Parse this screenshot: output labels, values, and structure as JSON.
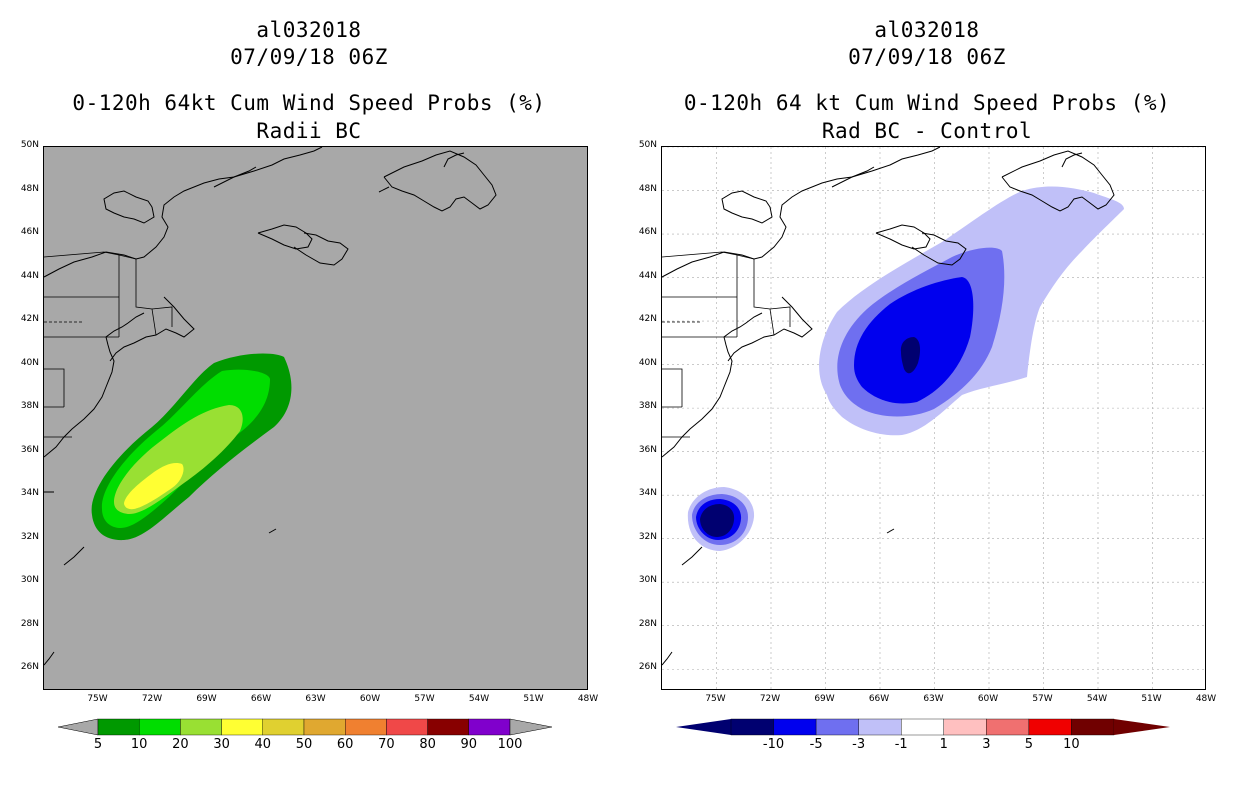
{
  "left_panel": {
    "storm_id": "al032018",
    "datetime": "07/09/18 06Z",
    "product": "0-120h 64kt Cum Wind Speed Probs (%)",
    "subtitle": "Radii BC",
    "background_color": "#a8a8a8",
    "legend_colors": [
      "#009900",
      "#00dd00",
      "#99e033",
      "#ffff33",
      "#e0d030",
      "#e0a830",
      "#f08030",
      "#f04848",
      "#880000",
      "#8000cc"
    ],
    "legend_labels": [
      "5",
      "10",
      "20",
      "30",
      "40",
      "50",
      "60",
      "70",
      "80",
      "90",
      "100"
    ]
  },
  "right_panel": {
    "storm_id": "al032018",
    "datetime": "07/09/18 06Z",
    "product": "0-120h 64 kt Cum Wind Speed Probs (%)",
    "subtitle": "Rad BC - Control",
    "background_color": "#ffffff",
    "legend_colors": [
      "#000070",
      "#0000ee",
      "#6f6ff0",
      "#c0c0f8",
      "#ffffff",
      "#ffc0c0",
      "#f07070",
      "#f00000",
      "#700000"
    ],
    "legend_labels": [
      "-10",
      "-5",
      "-3",
      "-1",
      "1",
      "3",
      "5",
      "10"
    ]
  },
  "lat_labels": [
    "50N",
    "48N",
    "46N",
    "44N",
    "42N",
    "40N",
    "38N",
    "36N",
    "34N",
    "32N",
    "30N",
    "28N",
    "26N"
  ],
  "lon_labels": [
    "75W",
    "72W",
    "69W",
    "66W",
    "63W",
    "60W",
    "57W",
    "54W",
    "51W",
    "48W"
  ],
  "map_extent": {
    "lon_min": -78,
    "lon_max": -48,
    "lat_min": 25,
    "lat_max": 50
  }
}
